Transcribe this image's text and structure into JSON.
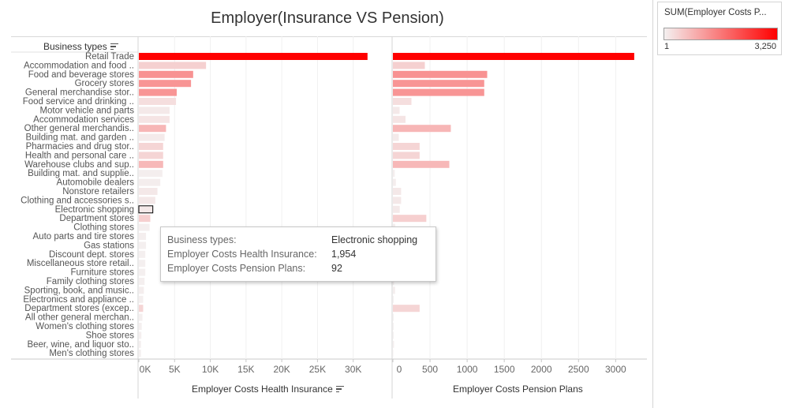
{
  "title": "Employer(Insurance VS Pension)",
  "row_header": "Business types",
  "legend": {
    "title": "SUM(Employer Costs P...",
    "min_label": "1",
    "max_label": "3,250",
    "low_color": "#f4f0f0",
    "high_color": "#ff0000"
  },
  "tooltip": {
    "rows": [
      {
        "key": "Business types:",
        "value": "Electronic shopping"
      },
      {
        "key": "Employer Costs Health Insurance:",
        "value": "1,954"
      },
      {
        "key": "Employer Costs Pension Plans:",
        "value": "92"
      }
    ]
  },
  "chart_data": {
    "type": "bar",
    "orientation": "horizontal",
    "color_by": "Employer Costs Pension Plans",
    "highlighted_category": "Electronic shopping",
    "categories": [
      "Retail Trade",
      "Accommodation and food ..",
      "Food and beverage stores",
      "Grocery stores",
      "General merchandise stor..",
      "Food service and drinking ..",
      "Motor vehicle and parts",
      "Accommodation services",
      "Other general merchandis..",
      "Building mat. and garden ..",
      "Pharmacies and drug stor..",
      "Health and personal care ..",
      "Warehouse clubs and sup..",
      "Building mat. and supplie..",
      "Automobile dealers",
      "Nonstore retailers",
      "Clothing and accessories s..",
      "Electronic shopping",
      "Department stores",
      "Clothing stores",
      "Auto parts and tire stores",
      "Gas stations",
      "Discount dept. stores",
      "Miscellaneous store retail..",
      "Furniture stores",
      "Family clothing stores",
      "Sporting, book, and music..",
      "Electronics and appliance ..",
      "Department stores (excep..",
      "All other general merchan..",
      "Women's clothing stores",
      "Shoe stores",
      "Beer, wine, and liquor sto..",
      "Men's clothing stores"
    ],
    "panels": [
      {
        "name": "Employer Costs Health Insurance",
        "xlabel": "Employer Costs Health Insurance",
        "xlim": [
          0,
          35000
        ],
        "ticks": [
          0,
          5000,
          10000,
          15000,
          20000,
          25000,
          30000
        ],
        "tick_labels": [
          "0K",
          "5K",
          "10K",
          "15K",
          "20K",
          "25K",
          "30K"
        ],
        "values": [
          32000,
          9400,
          7600,
          7300,
          5300,
          5200,
          4300,
          4300,
          3800,
          3600,
          3400,
          3400,
          3400,
          3300,
          3000,
          2600,
          2300,
          1954,
          1600,
          1500,
          1000,
          1000,
          900,
          900,
          900,
          800,
          700,
          600,
          600,
          500,
          400,
          350,
          300,
          300
        ]
      },
      {
        "name": "Employer Costs Pension Plans",
        "xlabel": "Employer Costs Pension Plans",
        "xlim": [
          0,
          3400
        ],
        "ticks": [
          0,
          500,
          1000,
          1500,
          2000,
          2500,
          3000
        ],
        "tick_labels": [
          "0",
          "500",
          "1000",
          "1500",
          "2000",
          "2500",
          "3000"
        ],
        "values": [
          3250,
          430,
          1270,
          1230,
          1230,
          250,
          90,
          170,
          780,
          80,
          360,
          360,
          760,
          25,
          40,
          110,
          110,
          92,
          450,
          30,
          25,
          20,
          20,
          15,
          15,
          15,
          30,
          10,
          360,
          10,
          10,
          10,
          15,
          5
        ]
      }
    ],
    "color_range": [
      1,
      3250
    ]
  }
}
